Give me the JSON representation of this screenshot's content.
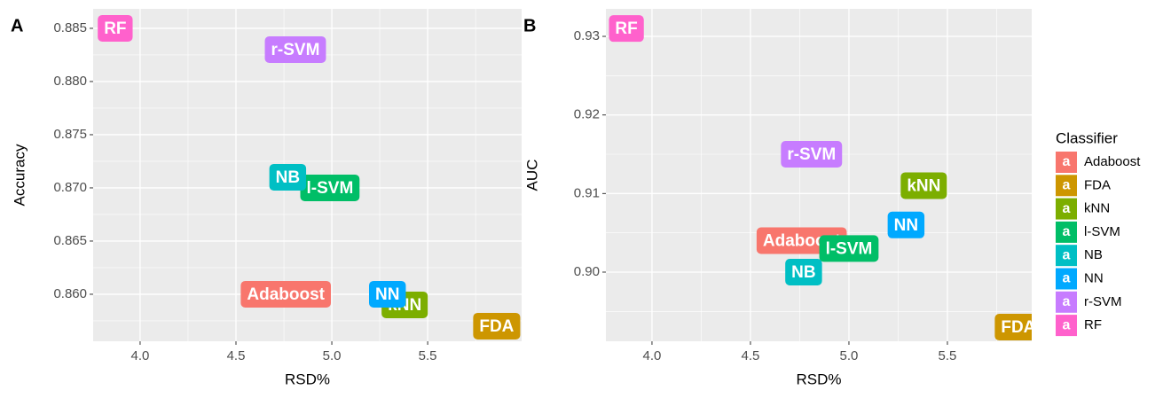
{
  "chart_data": [
    {
      "type": "scatter",
      "panel": "A",
      "xlabel": "RSD%",
      "ylabel": "Accuracy",
      "xlim": [
        3.755,
        5.99
      ],
      "ylim": [
        0.85558,
        0.88683
      ],
      "xticks": [
        {
          "value": 4,
          "label": "4.0"
        },
        4.5,
        {
          "value": 5,
          "label": "5.0"
        },
        5.5
      ],
      "yticks": [
        0.885,
        {
          "value": 0.88,
          "label": "0.880"
        },
        0.875,
        {
          "value": 0.87,
          "label": "0.870"
        },
        0.865,
        {
          "value": 0.86,
          "label": "0.860"
        }
      ],
      "grid": true,
      "series": [
        {
          "name": "Adaboost",
          "color": "#F8766D",
          "x": [
            4.76
          ],
          "values": [
            0.86
          ]
        },
        {
          "name": "FDA",
          "color": "#CD9600",
          "x": [
            5.86
          ],
          "values": [
            0.857
          ]
        },
        {
          "name": "kNN",
          "color": "#7CAE00",
          "x": [
            5.38
          ],
          "values": [
            0.859
          ]
        },
        {
          "name": "l-SVM",
          "color": "#00BE67",
          "x": [
            4.99
          ],
          "values": [
            0.87
          ]
        },
        {
          "name": "NB",
          "color": "#00BFC4",
          "x": [
            4.77
          ],
          "values": [
            0.871
          ]
        },
        {
          "name": "NN",
          "color": "#00A9FF",
          "x": [
            5.29
          ],
          "values": [
            0.86
          ]
        },
        {
          "name": "r-SVM",
          "color": "#C77CFF",
          "x": [
            4.81
          ],
          "values": [
            0.883
          ]
        },
        {
          "name": "RF",
          "color": "#FF61CC",
          "x": [
            3.87
          ],
          "values": [
            0.885
          ]
        }
      ]
    },
    {
      "type": "scatter",
      "panel": "B",
      "xlabel": "RSD%",
      "ylabel": "AUC",
      "xlim": [
        3.766,
        5.928
      ],
      "ylim": [
        0.8912,
        0.9335
      ],
      "xticks": [
        {
          "value": 4,
          "label": "4.0"
        },
        4.5,
        {
          "value": 5,
          "label": "5.0"
        },
        5.5
      ],
      "yticks": [
        0.93,
        0.92,
        0.91,
        {
          "value": 0.9,
          "label": "0.90"
        }
      ],
      "grid": true,
      "series": [
        {
          "name": "Adaboost",
          "color": "#F8766D",
          "x": [
            4.76
          ],
          "values": [
            0.904
          ]
        },
        {
          "name": "FDA",
          "color": "#CD9600",
          "x": [
            5.86
          ],
          "values": [
            0.893
          ]
        },
        {
          "name": "kNN",
          "color": "#7CAE00",
          "x": [
            5.38
          ],
          "values": [
            0.911
          ]
        },
        {
          "name": "l-SVM",
          "color": "#00BE67",
          "x": [
            5.0
          ],
          "values": [
            0.903
          ]
        },
        {
          "name": "NB",
          "color": "#00BFC4",
          "x": [
            4.77
          ],
          "values": [
            0.9
          ]
        },
        {
          "name": "NN",
          "color": "#00A9FF",
          "x": [
            5.29
          ],
          "values": [
            0.906
          ]
        },
        {
          "name": "r-SVM",
          "color": "#C77CFF",
          "x": [
            4.81
          ],
          "values": [
            0.915
          ]
        },
        {
          "name": "RF",
          "color": "#FF61CC",
          "x": [
            3.87
          ],
          "values": [
            0.931
          ]
        }
      ]
    }
  ],
  "legend": {
    "title": "Classifier",
    "key_text": "a"
  }
}
